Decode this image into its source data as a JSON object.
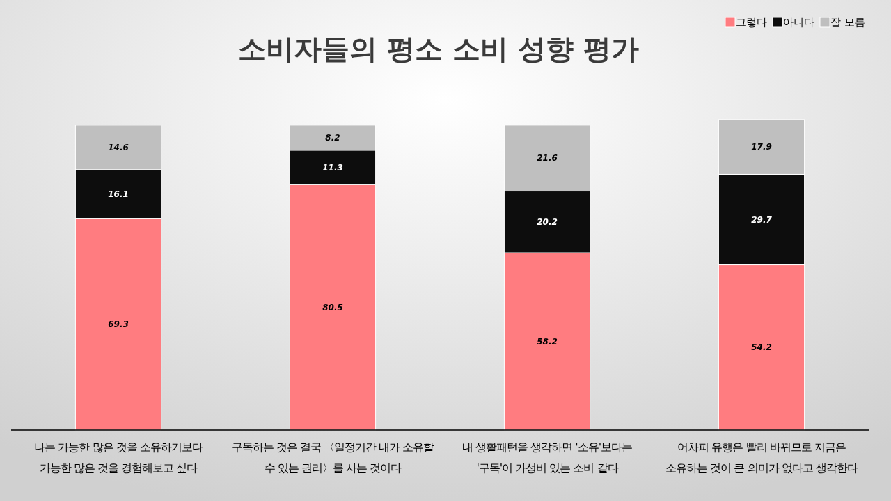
{
  "chart_data": {
    "type": "bar",
    "stacked": true,
    "title": "소비자들의 평소 소비 성향 평가",
    "categories": [
      "나는 가능한 많은 것을 소유하기보다\n가능한 많은 것을 경험해보고 싶다",
      "구독하는 것은 결국 〈일정기간 내가 소유할\n수 있는 권리〉를 사는 것이다",
      "내 생활패턴을 생각하면 '소유'보다는\n'구독'이 가성비 있는 소비 같다",
      "어차피 유행은 빨리 바뀌므로 지금은\n소유하는 것이 큰 의미가 없다고 생각한다"
    ],
    "series": [
      {
        "name": "그렇다",
        "color": "#ff7c80",
        "values": [
          69.3,
          80.5,
          58.2,
          54.2
        ]
      },
      {
        "name": "아니다",
        "color": "#0d0d0d",
        "values": [
          16.1,
          11.3,
          20.2,
          29.7
        ]
      },
      {
        "name": "잘 모름",
        "color": "#bfbfbf",
        "values": [
          14.6,
          8.2,
          21.6,
          17.9
        ]
      }
    ],
    "data_labels": true,
    "legend": "top right"
  }
}
